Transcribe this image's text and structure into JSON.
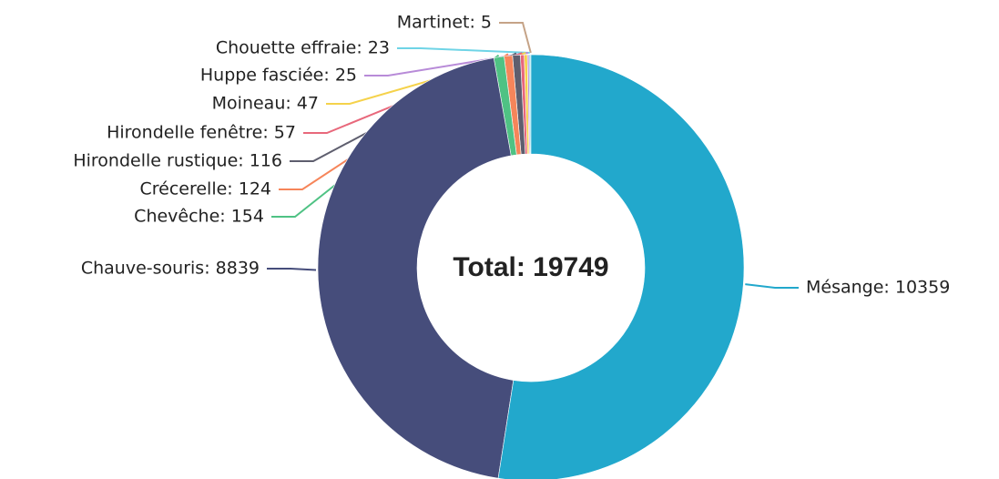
{
  "chart_data": {
    "type": "pie",
    "center_label": "Total: 19749",
    "categories": [
      "Mésange",
      "Chauve-souris",
      "Chevêche",
      "Crécerelle",
      "Hirondelle rustique",
      "Hirondelle fenêtre",
      "Moineau",
      "Huppe fasciée",
      "Chouette effraie",
      "Martinet"
    ],
    "values": [
      10359,
      8839,
      154,
      124,
      116,
      57,
      47,
      25,
      23,
      5
    ],
    "value_labels": [
      "Mésange: 10359",
      "Chauve-souris: 8839",
      "Chevêche: 154",
      "Crécerelle: 124",
      "Hirondelle rustique: 116",
      "Hirondelle fenêtre: 57",
      "Moineau: 47",
      "Huppe fasciée: 25",
      "Chouette effraie: 23",
      "Martinet: 5"
    ],
    "colors": [
      "#22a8cc",
      "#464d7b",
      "#4fc284",
      "#f6855a",
      "#5e5e6e",
      "#e8687b",
      "#f5d24b",
      "#b88bd8",
      "#6fd4e6",
      "#c5a387"
    ]
  }
}
